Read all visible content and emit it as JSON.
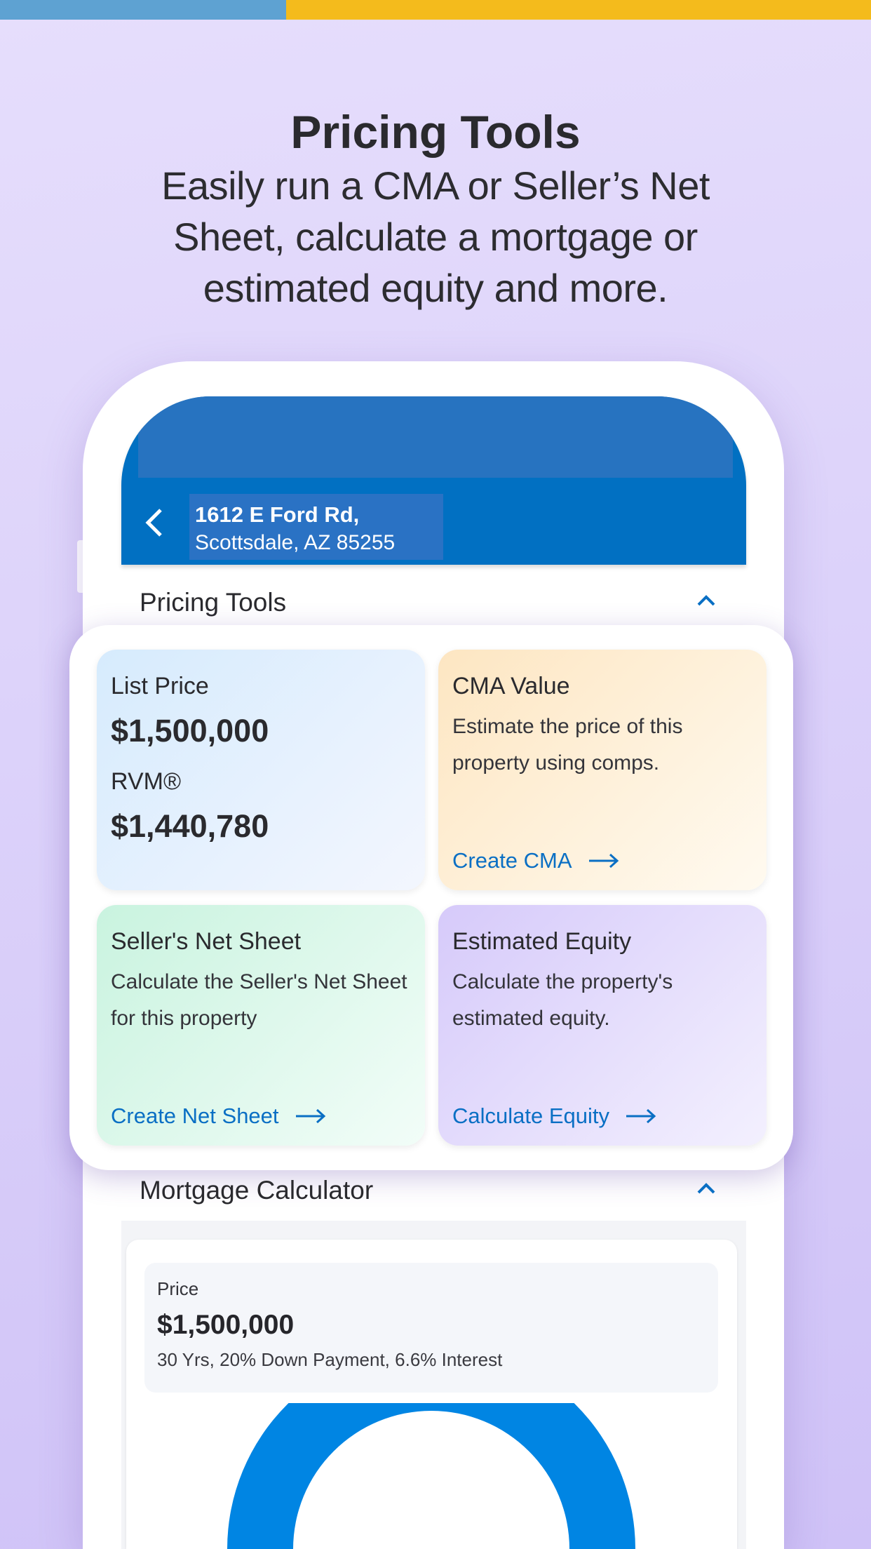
{
  "hero": {
    "title": "Pricing Tools",
    "subtitle_lines": [
      "Easily run a CMA or Seller’s Net",
      "Sheet, calculate a mortgage or",
      "estimated equity and more."
    ]
  },
  "colors": {
    "accent": "#0170c2",
    "link": "#0a6fc4",
    "top_bar_blue": "#5ea2d2",
    "top_bar_yellow": "#f4bb1c",
    "donut": "#0085e3"
  },
  "header": {
    "address_line1": "1612 E  Ford Rd,",
    "address_line2": "Scottsdale, AZ 85255",
    "back_icon": "chevron-left-icon"
  },
  "pricing_section": {
    "label": "Pricing Tools",
    "toggle_icon": "chevron-up-icon"
  },
  "tiles": {
    "list_price": {
      "title": "List Price",
      "value": "$1,500,000",
      "rvm_label": "RVM®",
      "rvm_value": "$1,440,780"
    },
    "cma": {
      "title": "CMA Value",
      "body": "Estimate the price of this property using comps.",
      "link": "Create CMA"
    },
    "net_sheet": {
      "title": "Seller's Net Sheet",
      "body": "Calculate the Seller's Net Sheet for this property",
      "link": "Create Net Sheet"
    },
    "equity": {
      "title": "Estimated Equity",
      "body": "Calculate the property's estimated equity.",
      "link": "Calculate Equity"
    }
  },
  "mortgage": {
    "label": "Mortgage Calculator",
    "price_label": "Price",
    "price_value": "$1,500,000",
    "details": "30 Yrs, 20% Down Payment, 6.6% Interest"
  }
}
